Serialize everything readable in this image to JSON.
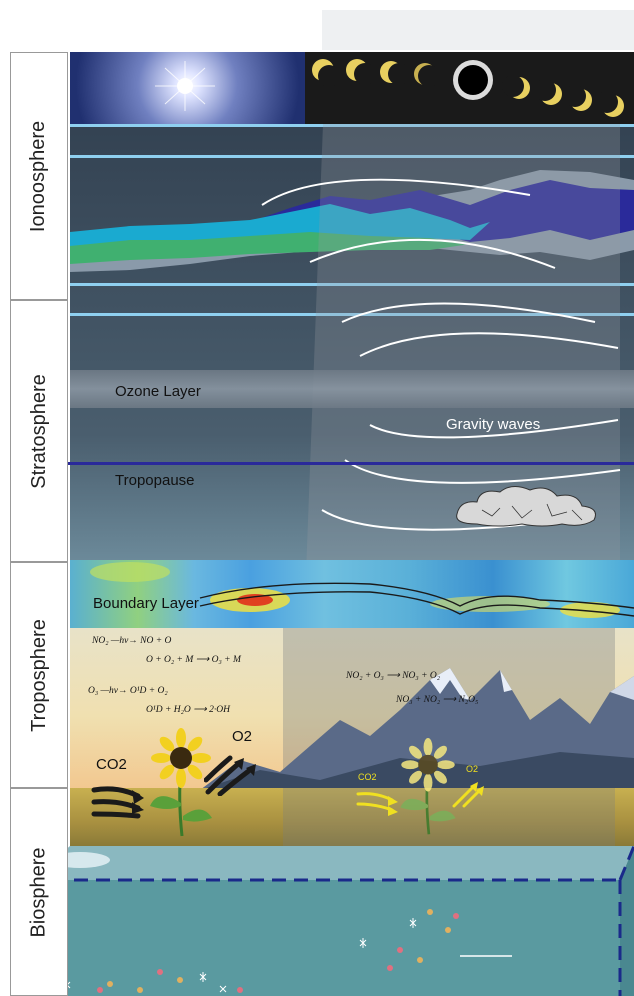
{
  "sections": [
    {
      "key": "ionosphere",
      "label": "Ionoosphere"
    },
    {
      "key": "stratosphere",
      "label": "Stratosphere"
    },
    {
      "key": "troposphere",
      "label": "Troposphere"
    },
    {
      "key": "biosphere",
      "label": "Biosphere"
    }
  ],
  "labels": {
    "ozone": "Ozone Layer",
    "gravity": "Gravity waves",
    "tropopause": "Tropopause",
    "boundary": "Boundary Layer",
    "co2_left": "CO2",
    "o2_left": "O2",
    "co2_right": "CO2",
    "o2_right": "O2"
  },
  "equations": {
    "e1": "NO₂ —hv→ NO + O",
    "e2": "O + O₂ + M ⟶ O₃ + M",
    "e3": "O₃ —hv→ O¹D + O₂",
    "e4": "O¹D + H₂O ⟶ 2·OH",
    "e5": "NO₂ + O₃ ⟶ NO₃ + O₂",
    "e6": "NO₃ + NO₂ ⟶ N₂O₅"
  },
  "colors": {
    "sky": "#3a4a5a",
    "ionosphere_lines": "#8fd0f0",
    "tropopause_line": "#2a2a9a",
    "ocean": "#5a9aa0",
    "ocean_border": "#1a2a8a",
    "arrow_dark": "#1a1a1a",
    "arrow_yellow": "#f0e020"
  },
  "icons": [
    "sun-burst-icon",
    "eclipse-sequence-icon",
    "cloud-icon",
    "sunflower-icon",
    "mountain-icon",
    "plankton-icon"
  ]
}
